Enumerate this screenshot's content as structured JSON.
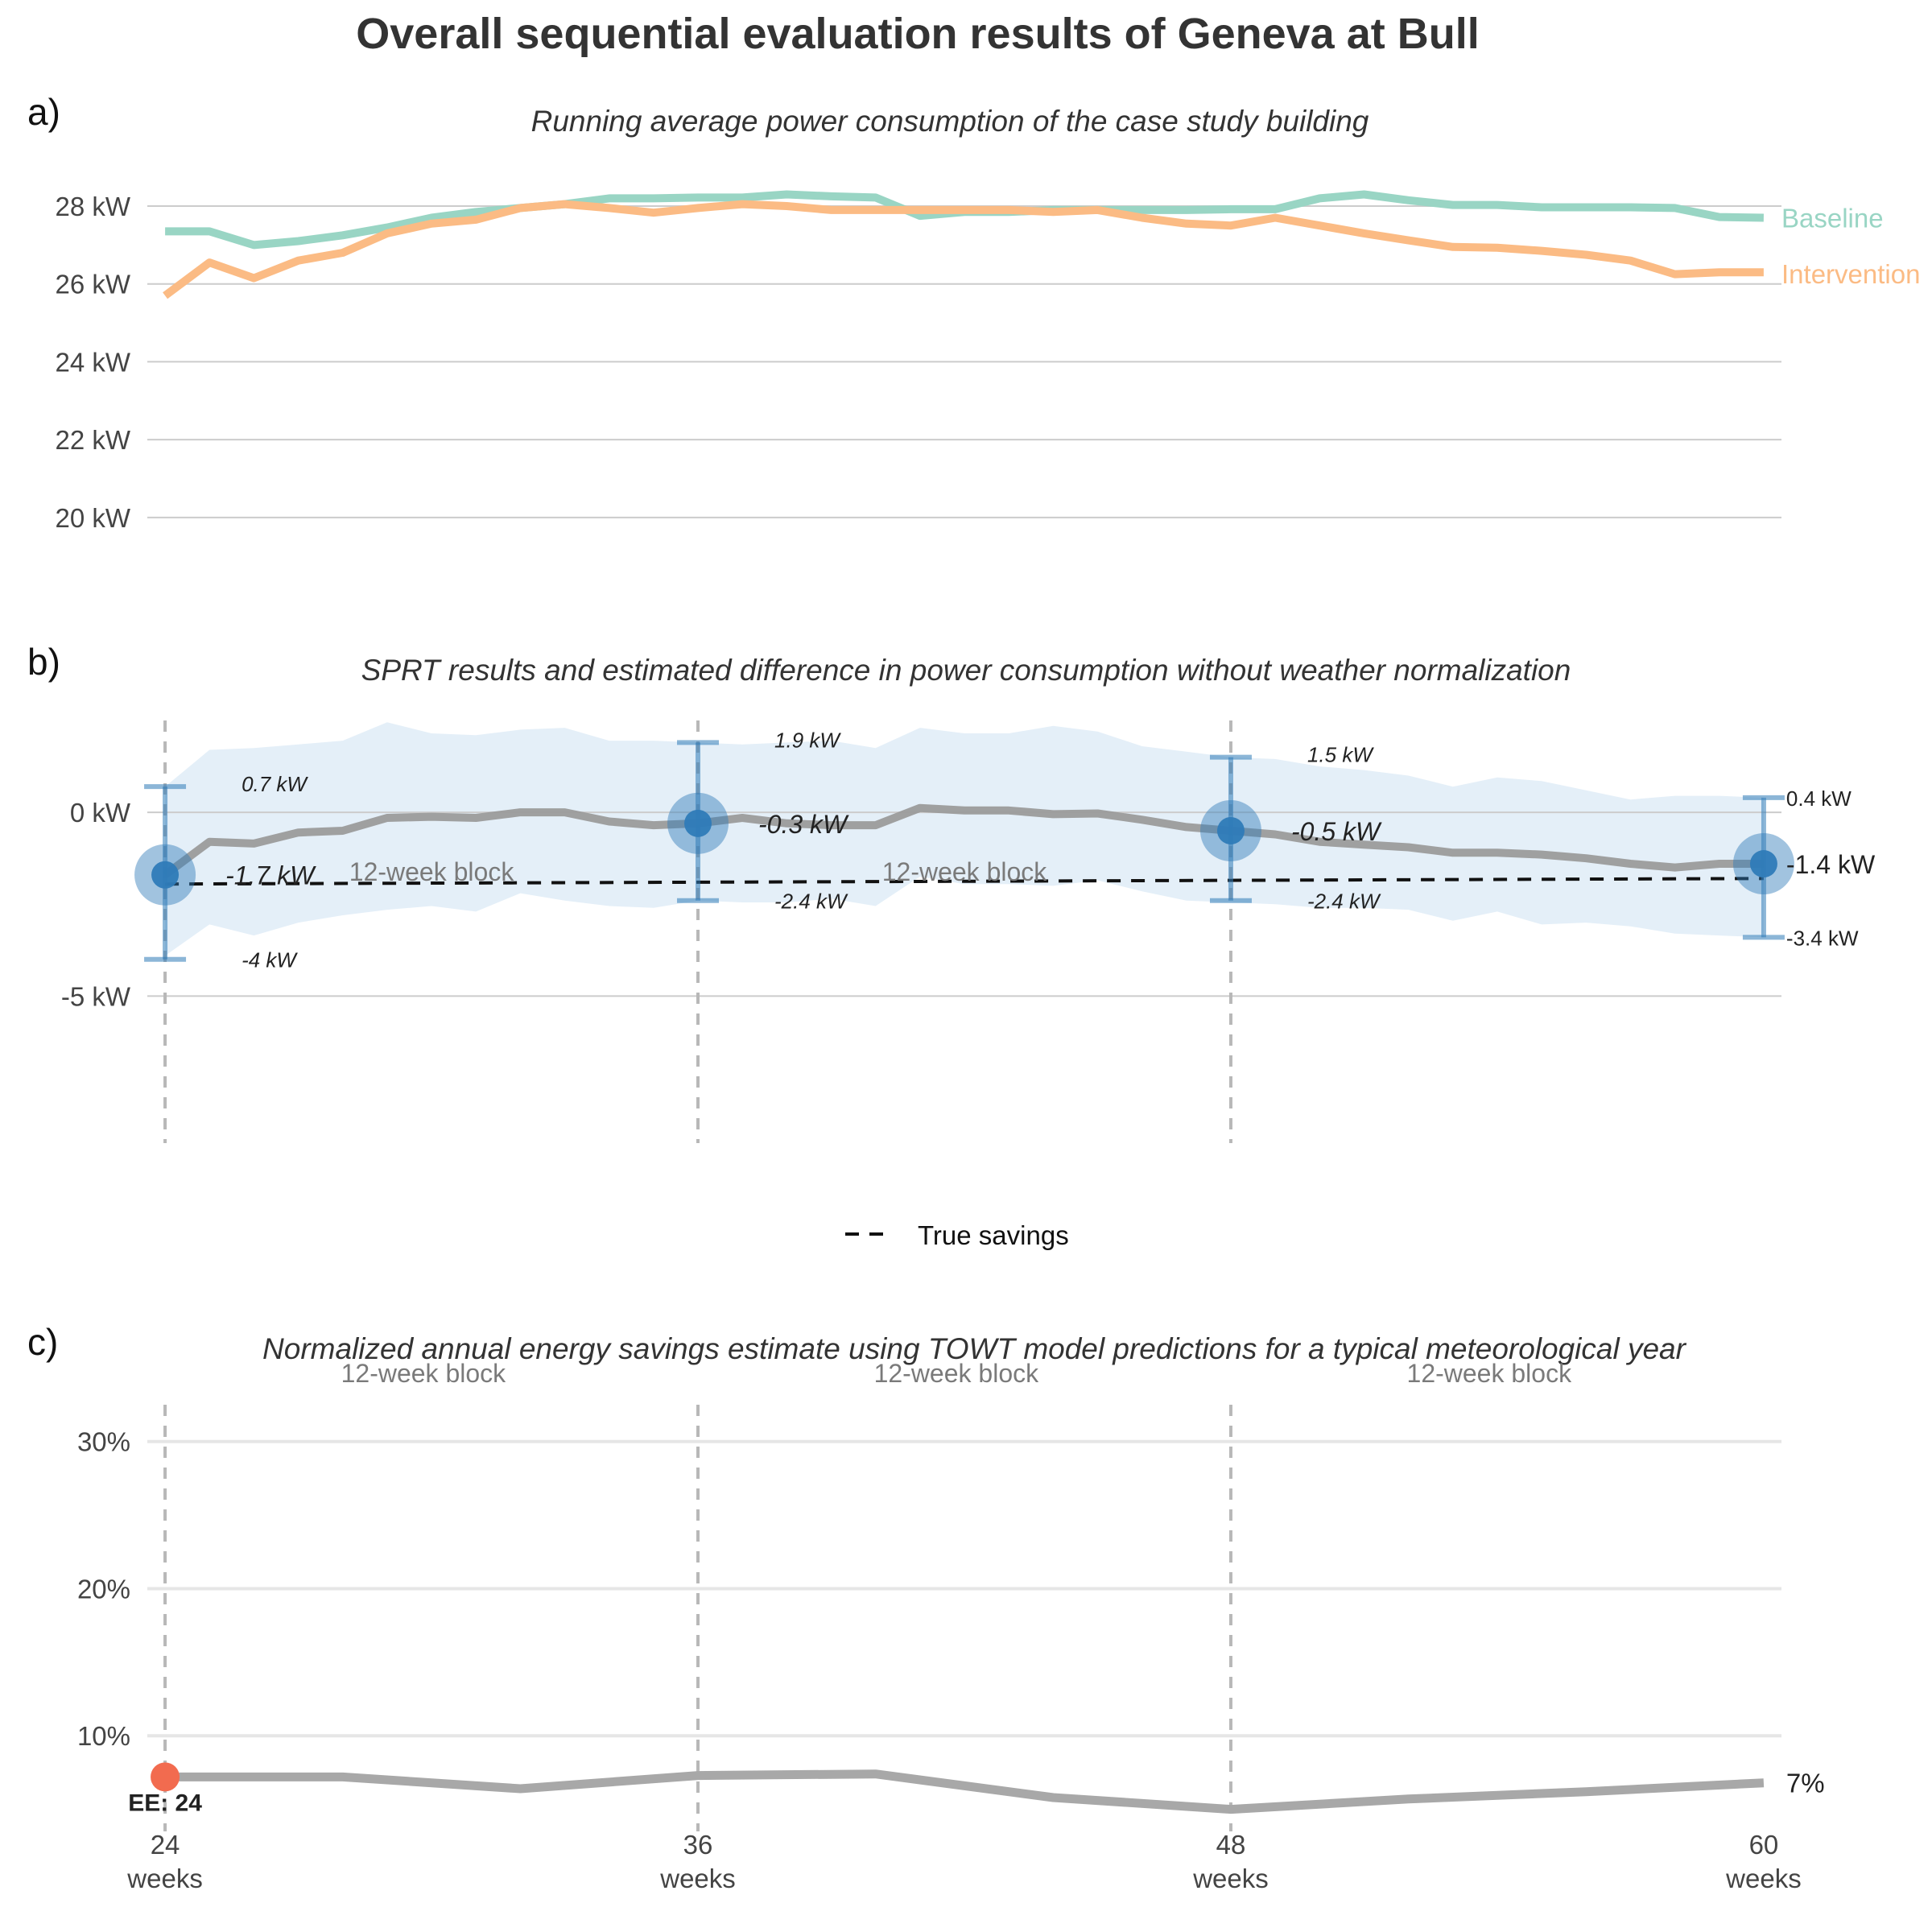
{
  "figure": {
    "title": "Overall sequential evaluation results of Geneva at Bull",
    "block_label": "12-week block",
    "colors": {
      "baseline": "#99d5c4",
      "intervention": "#fbbb84",
      "sprt": "#2f7bb8",
      "band": "#dbeaf5",
      "diff": "#9b9b9b",
      "savings_line": "#a8a8a8",
      "ee_point": "#f26b4f",
      "grid": "#cccccc",
      "vline": "#b8b8b8"
    }
  },
  "chart_data": [
    {
      "panel": "a)",
      "type": "line",
      "title": "Running average power consumption of the case study building",
      "ylim": [
        19.5,
        29.2
      ],
      "y_ticks": [
        20,
        22,
        24,
        26,
        28
      ],
      "y_tick_labels": [
        "20 kW",
        "22 kW",
        "24 kW",
        "26 kW",
        "28 kW"
      ],
      "x": [
        24,
        25,
        26,
        27,
        28,
        29,
        30,
        31,
        32,
        33,
        34,
        35,
        36,
        37,
        38,
        39,
        40,
        41,
        42,
        43,
        44,
        45,
        46,
        47,
        48,
        49,
        50,
        51,
        52,
        53,
        54,
        55,
        56,
        57,
        58,
        59,
        60
      ],
      "xlim": [
        23.6,
        60.4
      ],
      "series": [
        {
          "name": "Baseline",
          "color_key": "baseline",
          "values": [
            27.35,
            27.35,
            27.0,
            27.1,
            27.25,
            27.45,
            27.7,
            27.85,
            27.95,
            28.05,
            28.2,
            28.2,
            28.22,
            28.22,
            28.3,
            28.25,
            28.22,
            27.75,
            27.85,
            27.85,
            27.9,
            27.9,
            27.9,
            27.9,
            27.92,
            27.92,
            28.2,
            28.3,
            28.15,
            28.03,
            28.03,
            27.97,
            27.97,
            27.97,
            27.95,
            27.72,
            27.7
          ]
        },
        {
          "name": "Intervention",
          "color_key": "intervention",
          "values": [
            25.7,
            26.55,
            26.15,
            26.6,
            26.8,
            27.3,
            27.55,
            27.65,
            27.95,
            28.05,
            27.95,
            27.83,
            27.95,
            28.05,
            28.0,
            27.9,
            27.9,
            27.9,
            27.9,
            27.9,
            27.85,
            27.9,
            27.7,
            27.55,
            27.5,
            27.7,
            27.5,
            27.3,
            27.12,
            26.95,
            26.93,
            26.85,
            26.75,
            26.6,
            26.25,
            26.3,
            26.3
          ]
        }
      ]
    },
    {
      "panel": "b)",
      "type": "line",
      "title": "SPRT results and estimated difference in power consumption without weather normalization",
      "ylim": [
        -9,
        2.5
      ],
      "y_ticks": [
        0,
        -5
      ],
      "y_tick_labels": [
        "0 kW",
        "-5 kW"
      ],
      "xlim": [
        23.6,
        60.4
      ],
      "x": [
        24,
        25,
        26,
        27,
        28,
        29,
        30,
        31,
        32,
        33,
        34,
        35,
        36,
        37,
        38,
        39,
        40,
        41,
        42,
        43,
        44,
        45,
        46,
        47,
        48,
        49,
        50,
        51,
        52,
        53,
        54,
        55,
        56,
        57,
        58,
        59,
        60
      ],
      "difference": [
        -1.7,
        -0.8,
        -0.85,
        -0.55,
        -0.5,
        -0.15,
        -0.12,
        -0.15,
        0.0,
        0.0,
        -0.25,
        -0.35,
        -0.3,
        -0.15,
        -0.3,
        -0.35,
        -0.35,
        0.12,
        0.05,
        0.05,
        -0.05,
        -0.03,
        -0.2,
        -0.4,
        -0.5,
        -0.6,
        -0.8,
        -0.88,
        -0.95,
        -1.1,
        -1.1,
        -1.15,
        -1.25,
        -1.4,
        -1.5,
        -1.4,
        -1.4
      ],
      "band_upper": [
        0.7,
        1.7,
        1.75,
        1.85,
        1.95,
        2.45,
        2.15,
        2.1,
        2.25,
        2.3,
        1.95,
        1.95,
        1.9,
        1.85,
        1.9,
        1.95,
        1.75,
        2.3,
        2.15,
        2.15,
        2.35,
        2.2,
        1.8,
        1.65,
        1.5,
        1.45,
        1.25,
        1.15,
        1.0,
        0.7,
        0.95,
        0.85,
        0.6,
        0.35,
        0.45,
        0.45,
        0.4
      ],
      "band_lower": [
        -3.9,
        -3.05,
        -3.35,
        -3.0,
        -2.8,
        -2.65,
        -2.55,
        -2.7,
        -2.2,
        -2.4,
        -2.55,
        -2.6,
        -2.4,
        -2.45,
        -2.45,
        -2.35,
        -2.55,
        -1.75,
        -1.95,
        -1.95,
        -2.0,
        -1.85,
        -2.15,
        -2.4,
        -2.45,
        -2.5,
        -2.6,
        -2.6,
        -2.65,
        -2.95,
        -2.7,
        -3.05,
        -3.0,
        -3.1,
        -3.3,
        -3.35,
        -3.4
      ],
      "true_savings": {
        "name": "True savings",
        "x": [
          24,
          60
        ],
        "y": [
          -1.95,
          -1.8
        ]
      },
      "sprt_points": [
        {
          "x": 24,
          "estimate": -1.7,
          "upper": 0.7,
          "lower": -4.0,
          "estimate_label": "-1.7 kW",
          "upper_label": "0.7 kW",
          "lower_label": "-4 kW"
        },
        {
          "x": 36,
          "estimate": -0.3,
          "upper": 1.9,
          "lower": -2.4,
          "estimate_label": "-0.3 kW",
          "upper_label": "1.9 kW",
          "lower_label": "-2.4 kW"
        },
        {
          "x": 48,
          "estimate": -0.5,
          "upper": 1.5,
          "lower": -2.4,
          "estimate_label": "-0.5 kW",
          "upper_label": "1.5 kW",
          "lower_label": "-2.4 kW"
        },
        {
          "x": 60,
          "estimate": -1.4,
          "upper": 0.4,
          "lower": -3.4,
          "estimate_label": "-1.4 kW",
          "upper_label": "0.4 kW",
          "lower_label": "-3.4 kW"
        }
      ],
      "vlines": [
        24,
        36,
        48
      ],
      "block_label_positions": [
        30,
        42
      ],
      "legend": {
        "position": "bottom-center",
        "entries": [
          "True savings"
        ]
      }
    },
    {
      "panel": "c)",
      "type": "line",
      "title": "Normalized annual energy savings estimate using TOWT model predictions for a typical meteorological year",
      "ylim": [
        3.5,
        32.5
      ],
      "y_ticks": [
        10,
        20,
        30
      ],
      "y_tick_labels": [
        "10%",
        "20%",
        "30%"
      ],
      "xlim": [
        23.6,
        60.4
      ],
      "x": [
        24,
        28,
        32,
        36,
        40,
        44,
        48,
        52,
        56,
        60
      ],
      "values": [
        7.2,
        7.2,
        6.4,
        7.3,
        7.4,
        5.8,
        5.0,
        5.7,
        6.2,
        6.8
      ],
      "end_label": "7%",
      "x_ticks": [
        24,
        36,
        48,
        60
      ],
      "x_tick_labels": [
        [
          "24",
          "weeks"
        ],
        [
          "36",
          "weeks"
        ],
        [
          "48",
          "weeks"
        ],
        [
          "60",
          "weeks"
        ]
      ],
      "vlines": [
        24,
        36,
        48
      ],
      "block_label_positions": [
        29.0,
        41.0,
        53.0
      ],
      "ee_point": {
        "x": 24,
        "y": 7.2,
        "label": "EE: 24"
      }
    }
  ]
}
